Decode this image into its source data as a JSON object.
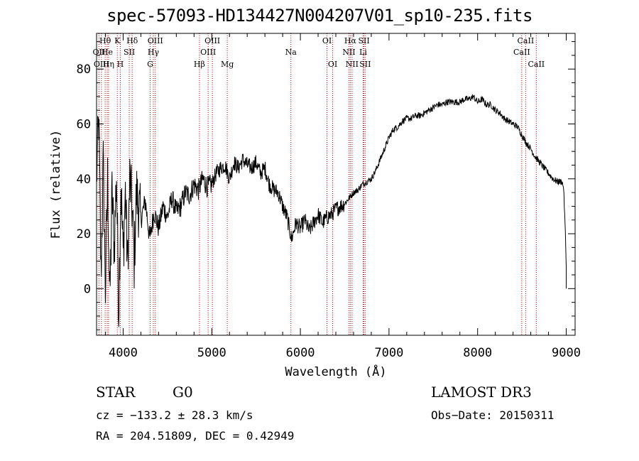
{
  "title": "spec-57093-HD134427N004207V01_sp10-235.fits",
  "info": {
    "object_class": "STAR",
    "subclass": "G0",
    "survey": "LAMOST DR3",
    "cz_line": "cz = −133.2 ± 28.3 km/s",
    "obs_date_line": "Obs−Date: 20150311",
    "radec_line": "RA = 204.51809, DEC =    0.42949"
  },
  "chart_data": {
    "type": "line",
    "title": "spec-57093-HD134427N004207V01_sp10-235.fits",
    "xlabel": "Wavelength (Å)",
    "ylabel": "Flux (relative)",
    "xlim": [
      3700,
      9100
    ],
    "ylim": [
      -17,
      93
    ],
    "x_ticks": [
      4000,
      5000,
      6000,
      7000,
      8000,
      9000
    ],
    "y_ticks": [
      0,
      20,
      40,
      60,
      80
    ],
    "x_tick_labels": [
      "4000",
      "5000",
      "6000",
      "7000",
      "8000",
      "9000"
    ],
    "y_tick_labels": [
      "0",
      "20",
      "40",
      "60",
      "80"
    ],
    "x_minor_step": 200,
    "y_minor_step": 5,
    "series": [
      {
        "name": "flux",
        "x": [
          3700,
          3725,
          3750,
          3775,
          3800,
          3825,
          3850,
          3875,
          3900,
          3925,
          3950,
          3975,
          4000,
          4025,
          4050,
          4075,
          4100,
          4125,
          4150,
          4200,
          4250,
          4300,
          4350,
          4400,
          4450,
          4500,
          4550,
          4600,
          4650,
          4700,
          4750,
          4800,
          4850,
          4900,
          4950,
          5000,
          5050,
          5100,
          5150,
          5200,
          5250,
          5300,
          5350,
          5400,
          5450,
          5500,
          5550,
          5600,
          5650,
          5700,
          5750,
          5800,
          5850,
          5900,
          5950,
          6000,
          6050,
          6100,
          6150,
          6200,
          6250,
          6300,
          6350,
          6400,
          6450,
          6500,
          6550,
          6600,
          6650,
          6700,
          6750,
          6800,
          6850,
          6900,
          6950,
          7000,
          7050,
          7100,
          7150,
          7200,
          7250,
          7300,
          7350,
          7400,
          7450,
          7500,
          7550,
          7600,
          7650,
          7700,
          7750,
          7800,
          7850,
          7900,
          7950,
          8000,
          8050,
          8100,
          8150,
          8200,
          8250,
          8300,
          8350,
          8400,
          8450,
          8500,
          8550,
          8600,
          8650,
          8700,
          8750,
          8800,
          8850,
          8900,
          8950,
          8970,
          8990,
          9000,
          9000
        ],
        "y": [
          40,
          62,
          5,
          45,
          0,
          40,
          -5,
          35,
          15,
          42,
          -8,
          38,
          12,
          35,
          8,
          40,
          30,
          10,
          35,
          25,
          32,
          18,
          28,
          22,
          30,
          26,
          33,
          28,
          30,
          35,
          34,
          38,
          36,
          40,
          37,
          38,
          42,
          44,
          45,
          40,
          46,
          44,
          47,
          45,
          44,
          46,
          42,
          44,
          38,
          36,
          35,
          30,
          26,
          18,
          24,
          22,
          25,
          21,
          24,
          27,
          24,
          26,
          27,
          29,
          30,
          31,
          33,
          35,
          36,
          38,
          39,
          40,
          43,
          47,
          51,
          55,
          58,
          59,
          61,
          62,
          62,
          63,
          63,
          64,
          65,
          66,
          67,
          67,
          68,
          68,
          68,
          68,
          69,
          69,
          70,
          68,
          69,
          67,
          67,
          65,
          64,
          62,
          61,
          60,
          59,
          56,
          53,
          51,
          48,
          46,
          44,
          42,
          40,
          39,
          39,
          37,
          20,
          8,
          0
        ]
      }
    ],
    "lines": [
      {
        "name": "Hθ",
        "wavelength": 3797,
        "row": 0
      },
      {
        "name": "OII",
        "wavelength": 3727,
        "row": 1
      },
      {
        "name": "OIII",
        "wavelength": 3755,
        "row": 2
      },
      {
        "name": "He",
        "wavelength": 3820,
        "row": 1
      },
      {
        "name": "Hη",
        "wavelength": 3835,
        "row": 2
      },
      {
        "name": "K",
        "wavelength": 3934,
        "row": 0
      },
      {
        "name": "H",
        "wavelength": 3968,
        "row": 2
      },
      {
        "name": "SII",
        "wavelength": 4069,
        "row": 1
      },
      {
        "name": "Hδ",
        "wavelength": 4102,
        "row": 0
      },
      {
        "name": "OIII",
        "wavelength": 4363,
        "row": 0
      },
      {
        "name": "Hγ",
        "wavelength": 4341,
        "row": 1
      },
      {
        "name": "G",
        "wavelength": 4305,
        "row": 2
      },
      {
        "name": "Hβ",
        "wavelength": 4861,
        "row": 2
      },
      {
        "name": "OIII",
        "wavelength": 5007,
        "row": 0
      },
      {
        "name": "OIII",
        "wavelength": 4959,
        "row": 1
      },
      {
        "name": "Mg",
        "wavelength": 5175,
        "row": 2
      },
      {
        "name": "Na",
        "wavelength": 5893,
        "row": 1
      },
      {
        "name": "OI",
        "wavelength": 6300,
        "row": 0
      },
      {
        "name": "OI",
        "wavelength": 6364,
        "row": 2
      },
      {
        "name": "Hα",
        "wavelength": 6563,
        "row": 0
      },
      {
        "name": "NII",
        "wavelength": 6548,
        "row": 1
      },
      {
        "name": "NII",
        "wavelength": 6583,
        "row": 2
      },
      {
        "name": "SII",
        "wavelength": 6717,
        "row": 0
      },
      {
        "name": "Li",
        "wavelength": 6708,
        "row": 1
      },
      {
        "name": "SII",
        "wavelength": 6731,
        "row": 2
      },
      {
        "name": "CaII",
        "wavelength": 8542,
        "row": 0
      },
      {
        "name": "CaII",
        "wavelength": 8498,
        "row": 1
      },
      {
        "name": "CaII",
        "wavelength": 8662,
        "row": 2
      }
    ]
  }
}
